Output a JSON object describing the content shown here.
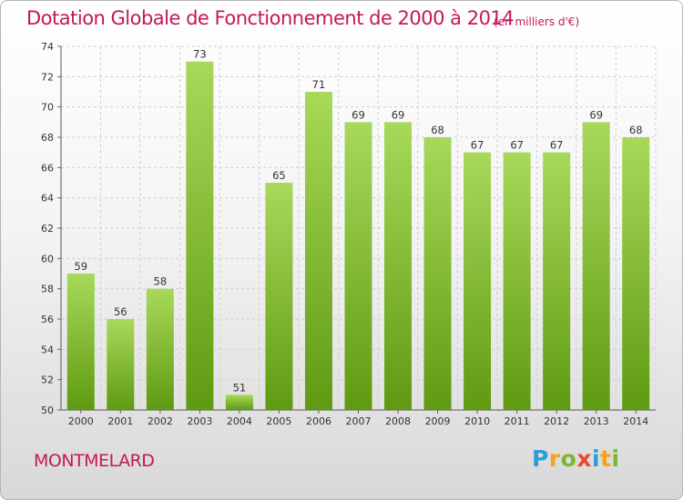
{
  "header": {
    "title": "Dotation Globale de Fonctionnement de 2000 à 2014",
    "unit": "(en milliers d'€)"
  },
  "footer": {
    "commune": "MONTMELARD",
    "brand": "Proxiti"
  },
  "colors": {
    "title": "#c2185b",
    "bar_light": "#a8d95a",
    "bar_dark": "#5f9a12",
    "grid": "#cfcfcf"
  },
  "chart_data": {
    "type": "bar",
    "title": "Dotation Globale de Fonctionnement de 2000 à 2014",
    "subtitle": "(en milliers d'€)",
    "xlabel": "",
    "ylabel": "",
    "categories": [
      "2000",
      "2001",
      "2002",
      "2003",
      "2004",
      "2005",
      "2006",
      "2007",
      "2008",
      "2009",
      "2010",
      "2011",
      "2012",
      "2013",
      "2014"
    ],
    "values": [
      59,
      56,
      58,
      73,
      51,
      65,
      71,
      69,
      69,
      68,
      67,
      67,
      67,
      69,
      68
    ],
    "ylim": [
      50,
      74
    ],
    "yticks": [
      50,
      52,
      54,
      56,
      58,
      60,
      62,
      64,
      66,
      68,
      70,
      72,
      74
    ],
    "grid": true,
    "data_labels": true,
    "legend": "none"
  }
}
